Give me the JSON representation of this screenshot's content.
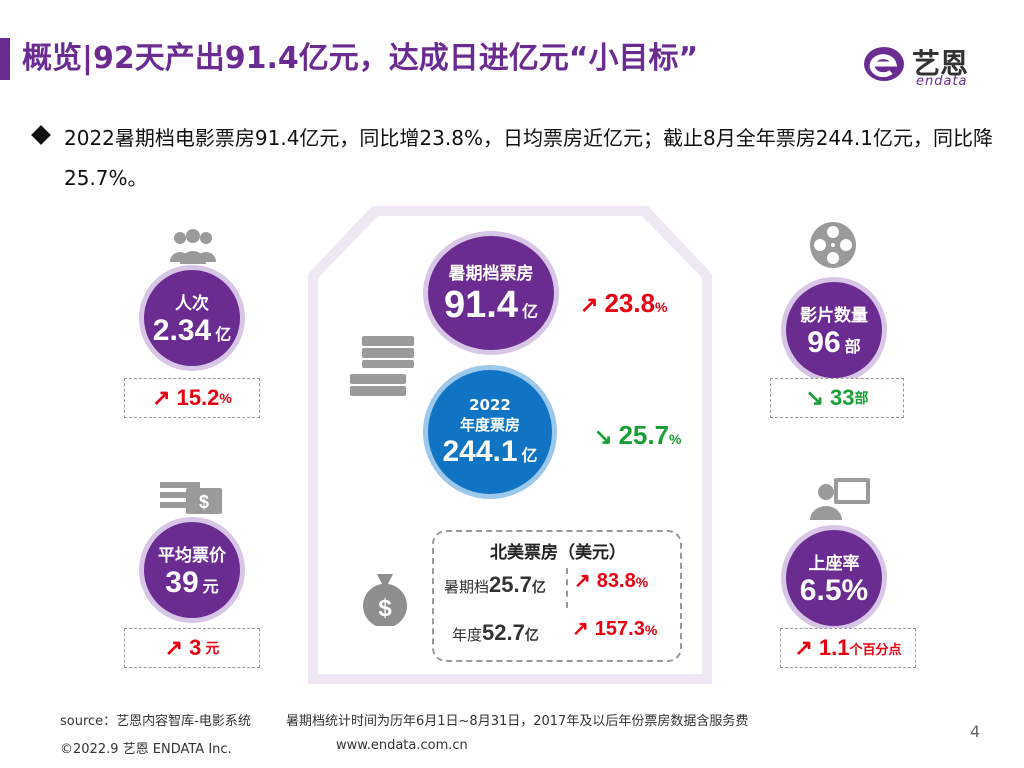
{
  "header": {
    "title": "概览|92天产出91.4亿元，达成日进亿元“小目标”",
    "logo_text": "艺恩",
    "logo_sub": "endata"
  },
  "bullet": "2022暑期档电影票房91.4亿元，同比增23.8%，日均票房近亿元；截止8月全年票房244.1亿元，同比降25.7%。",
  "left": {
    "people": {
      "label": "人次",
      "value": "2.34",
      "unit": "亿",
      "change": "15.2",
      "change_unit": "%"
    },
    "price": {
      "label": "平均票价",
      "value": "39",
      "unit": "元",
      "change": "3",
      "change_unit": "元"
    }
  },
  "center": {
    "summer": {
      "label": "暑期档票房",
      "value": "91.4",
      "unit": "亿",
      "change": "23.8",
      "change_unit": "%"
    },
    "year": {
      "label_year": "2022",
      "label": "年度票房",
      "value": "244.1",
      "unit": "亿",
      "change": "25.7",
      "change_unit": "%"
    },
    "north_america": {
      "title": "北美票房（美元）",
      "summer_label": "暑期档",
      "summer_value": "25.7",
      "summer_unit": "亿",
      "summer_change": "83.8",
      "summer_change_unit": "%",
      "year_label": "年度",
      "year_value": "52.7",
      "year_unit": "亿",
      "year_change": "157.3",
      "year_change_unit": "%"
    }
  },
  "right": {
    "films": {
      "label": "影片数量",
      "value": "96",
      "unit": "部",
      "change": "33",
      "change_unit": "部"
    },
    "occupancy": {
      "label": "上座率",
      "value": "6.5%",
      "change": "1.1",
      "change_unit": "个百分点"
    }
  },
  "footer": {
    "source": "source：艺恩内容智库-电影系统",
    "note": "暑期档统计时间为历年6月1日~8月31日，2017年及以后年份票房数据含服务费",
    "copyright": "©2022.9 艺恩 ENDATA Inc.",
    "website": "www.endata.com.cn",
    "page": "4"
  },
  "colors": {
    "purple": "#6b2c91",
    "blue": "#1173c4",
    "up_red": "#e60012",
    "down_green": "#1a9e36"
  }
}
